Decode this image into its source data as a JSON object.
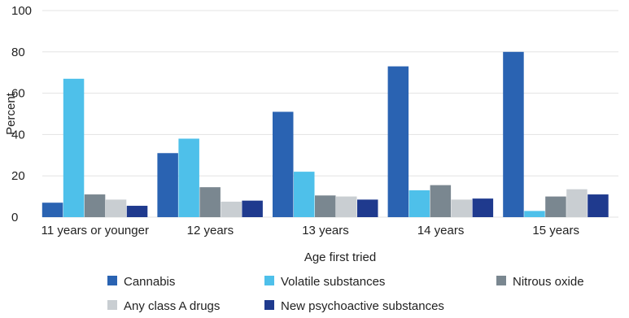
{
  "chart_data": {
    "type": "bar",
    "title": "",
    "xlabel": "Age first tried",
    "ylabel": "Percent",
    "ylim": [
      0,
      100
    ],
    "yticks": [
      "0",
      "20",
      "40",
      "60",
      "80",
      "100"
    ],
    "grid": true,
    "legend_position": "bottom",
    "categories": [
      "11 years or younger",
      "12 years",
      "13 years",
      "14 years",
      "15 years"
    ],
    "series": [
      {
        "name": "Cannabis",
        "color": "#2a63b2",
        "values": [
          7,
          31,
          51,
          73,
          80
        ]
      },
      {
        "name": "Volatile substances",
        "color": "#4ec0ea",
        "values": [
          67,
          38,
          22,
          13,
          3
        ]
      },
      {
        "name": "Nitrous oxide",
        "color": "#7a8790",
        "values": [
          11,
          14.5,
          10.5,
          15.5,
          10
        ]
      },
      {
        "name": "Any class A drugs",
        "color": "#c9ced2",
        "values": [
          8.5,
          7.5,
          10,
          8.5,
          13.5
        ]
      },
      {
        "name": "New psychoactive substances",
        "color": "#1f3a8e",
        "values": [
          5.5,
          8,
          8.5,
          9,
          11
        ]
      }
    ]
  }
}
